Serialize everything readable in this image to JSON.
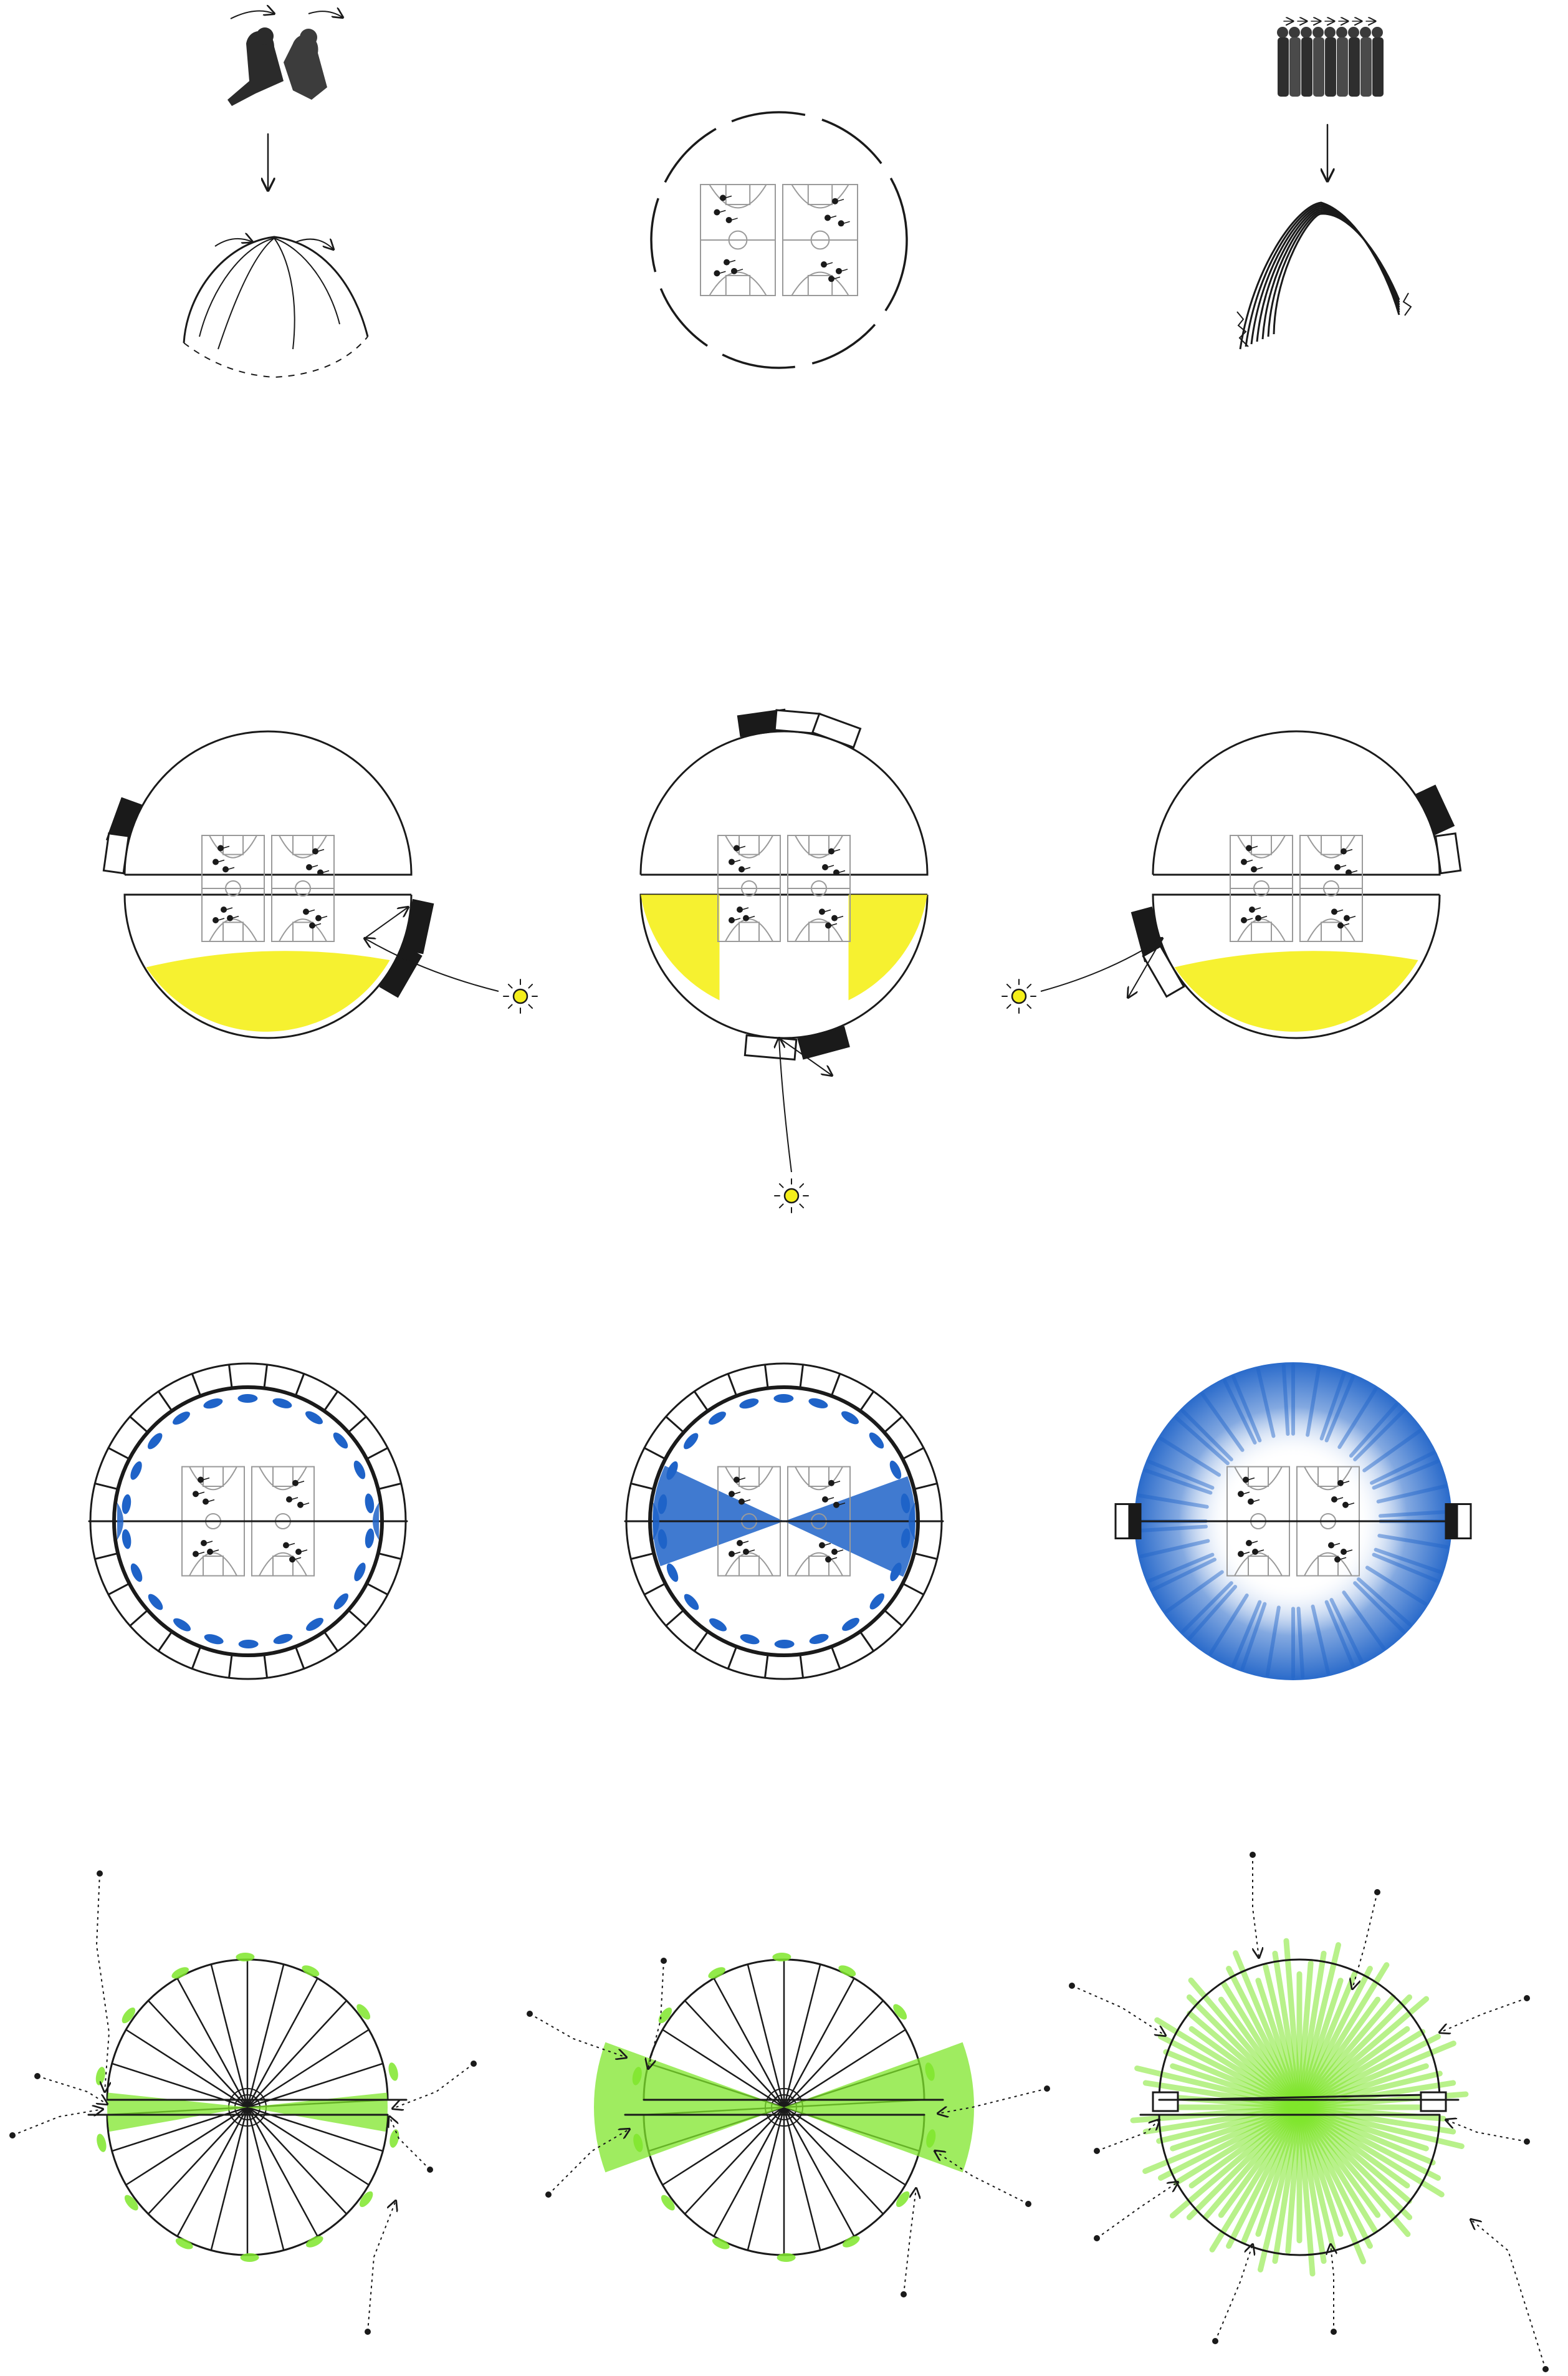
{
  "palette": {
    "ink": "#1a1a1a",
    "court": "#9a9a9a",
    "sunlight": "#f5ef1a",
    "acoustic": "#1f63c8",
    "greenery": "#7fe62b"
  },
  "icons": {
    "players": "jumping-players-icon",
    "crowd": "crowd-icon",
    "sun": "sun-icon",
    "court": "basketball-court-icon"
  },
  "rows": [
    {
      "name": "concept",
      "panels": [
        "players-to-dome",
        "court-plan",
        "crowd-to-arch"
      ]
    },
    {
      "name": "sunlight",
      "panels": [
        "sun-from-east",
        "sun-from-south",
        "sun-from-west"
      ]
    },
    {
      "name": "acoustics",
      "panels": [
        "perimeter-panels",
        "diagonal-split",
        "full-coverage"
      ]
    },
    {
      "name": "access",
      "panels": [
        "side-entries",
        "diagonal-entries",
        "radial-entries"
      ]
    }
  ]
}
